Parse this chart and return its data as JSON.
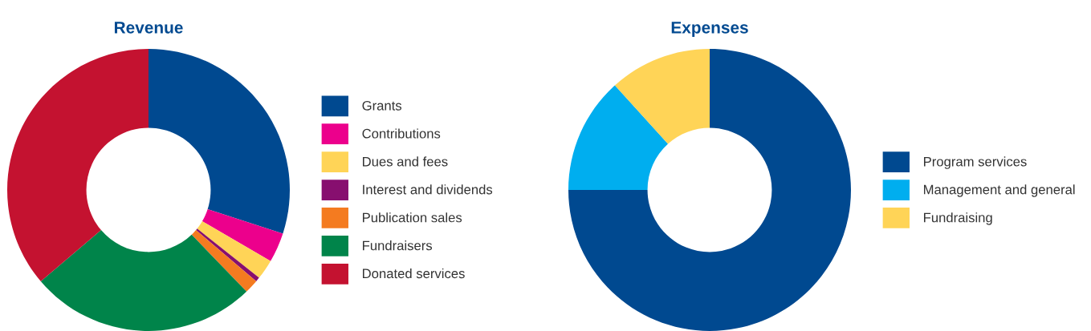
{
  "chart_data": [
    {
      "type": "donut",
      "title": "Revenue",
      "categories": [
        "Grants",
        "Contributions",
        "Dues and fees",
        "Interest and dividends",
        "Publication sales",
        "Fundraisers",
        "Donated services"
      ],
      "values": [
        30.0,
        3.4,
        2.3,
        0.5,
        1.6,
        26.0,
        36.2
      ],
      "colors": [
        "#004990",
        "#ec008c",
        "#ffd457",
        "#870f6f",
        "#f47b20",
        "#00844a",
        "#c41230"
      ],
      "legend": "right"
    },
    {
      "type": "donut",
      "title": "Expenses",
      "categories": [
        "Program services",
        "Management and general",
        "Fundraising"
      ],
      "values": [
        75.0,
        13.3,
        11.7
      ],
      "colors": [
        "#004990",
        "#00aeef",
        "#ffd457"
      ],
      "legend": "right"
    }
  ]
}
